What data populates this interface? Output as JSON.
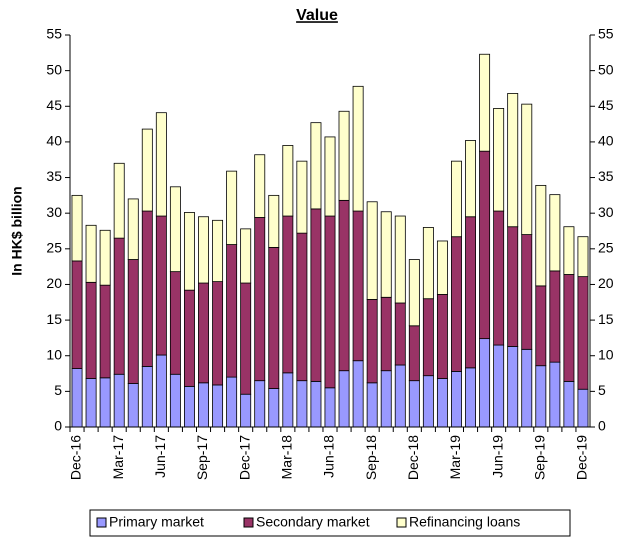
{
  "chart_data": {
    "type": "stacked_bar",
    "title": "Value",
    "y_label": "In HK$ billion",
    "categories": [
      "Dec-16",
      null,
      null,
      "Mar-17",
      null,
      null,
      "Jun-17",
      null,
      null,
      "Sep-17",
      null,
      null,
      "Dec-17",
      null,
      null,
      "Mar-18",
      null,
      null,
      "Jun-18",
      null,
      null,
      "Sep-18",
      null,
      null,
      "Dec-18",
      null,
      null,
      "Mar-19",
      null,
      null,
      "Jun-19",
      null,
      null,
      "Sep-19",
      null,
      null,
      "Dec-19"
    ],
    "series": [
      {
        "name": "Primary market",
        "color": "#9999ff",
        "values": [
          8.2,
          6.8,
          6.9,
          7.4,
          6.1,
          8.5,
          10.1,
          7.4,
          5.7,
          6.2,
          5.9,
          7.0,
          4.6,
          6.5,
          5.4,
          7.6,
          6.5,
          6.4,
          5.5,
          7.9,
          9.3,
          6.2,
          7.9,
          8.7,
          6.5,
          7.2,
          6.8,
          7.8,
          8.3,
          12.4,
          11.5,
          11.3,
          10.9,
          8.6,
          9.1,
          6.4,
          5.3
        ]
      },
      {
        "name": "Secondary market",
        "color": "#993366",
        "values": [
          15.1,
          13.5,
          13.0,
          19.1,
          17.4,
          21.8,
          19.5,
          14.4,
          13.5,
          14.0,
          14.5,
          18.6,
          15.6,
          22.9,
          19.8,
          22.0,
          20.7,
          24.2,
          24.1,
          23.9,
          21.0,
          11.7,
          10.3,
          8.7,
          7.7,
          10.8,
          11.8,
          18.9,
          21.2,
          26.3,
          18.8,
          16.8,
          16.1,
          11.2,
          12.8,
          15.0,
          15.8
        ]
      },
      {
        "name": "Refinancing loans",
        "color": "#ffffcc",
        "values": [
          9.2,
          8.0,
          7.7,
          10.5,
          8.5,
          11.5,
          14.5,
          11.9,
          10.9,
          9.3,
          8.6,
          10.3,
          7.6,
          8.8,
          7.3,
          9.9,
          10.1,
          12.1,
          11.1,
          12.5,
          17.5,
          13.7,
          12.0,
          12.2,
          9.3,
          10.0,
          7.5,
          10.6,
          10.7,
          13.6,
          14.4,
          18.7,
          18.3,
          14.1,
          10.7,
          6.7,
          5.6
        ]
      }
    ],
    "ylim": [
      0,
      55
    ],
    "yticks": [
      0,
      5,
      10,
      15,
      20,
      25,
      30,
      35,
      40,
      45,
      50,
      55
    ],
    "y2lim": [
      0,
      55
    ],
    "y2ticks": [
      0,
      5,
      10,
      15,
      20,
      25,
      30,
      35,
      40,
      45,
      50,
      55
    ],
    "legend": "bottom"
  }
}
